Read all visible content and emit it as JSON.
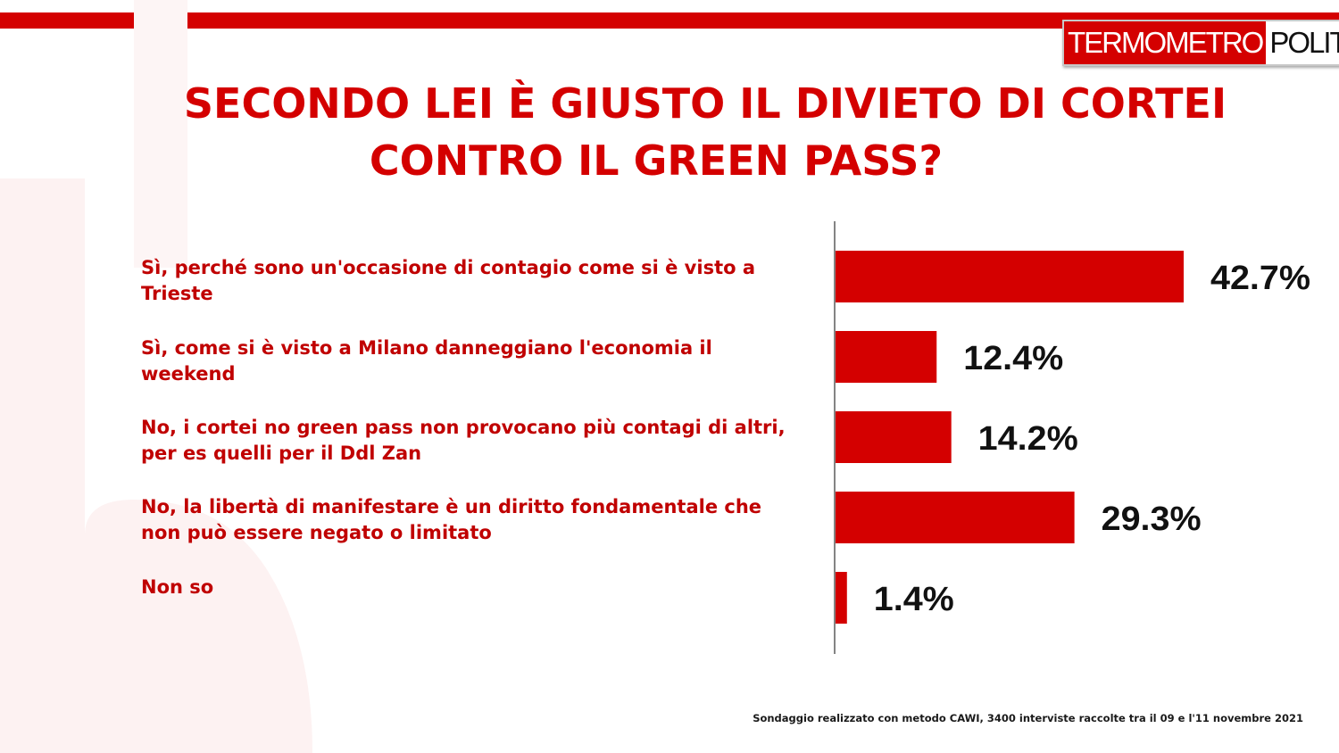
{
  "logo": {
    "part1": "TERMOMETRO",
    "part2": "POLITICO"
  },
  "chart_data": {
    "type": "bar",
    "orientation": "horizontal",
    "title": "SECONDO LEI È GIUSTO IL DIVIETO DI CORTEI CONTRO IL GREEN PASS?",
    "title_lines": [
      "SECONDO LEI È GIUSTO IL DIVIETO DI CORTEI",
      "CONTRO IL GREEN PASS?"
    ],
    "categories": [
      "Sì, perché sono un'occasione di contagio come si è visto a Trieste",
      "Sì, come si è visto a Milano danneggiano l'economia il weekend",
      "No, i cortei no green pass non provocano più contagi di altri, per es quelli per il Ddl Zan",
      "No, la libertà  di manifestare è un diritto fondamentale che non può essere negato o limitato",
      "Non so"
    ],
    "values": [
      42.7,
      12.4,
      14.2,
      29.3,
      1.4
    ],
    "data_labels": [
      "42.7%",
      "12.4%",
      "14.2%",
      "29.3%",
      "1.4%"
    ],
    "bar_color": "#d40000",
    "xlim": [
      0,
      42.7
    ],
    "grid": false,
    "legend": "none"
  },
  "footer": "Sondaggio realizzato con metodo CAWI, 3400 interviste raccolte tra il 09 e l'11 novembre 2021"
}
